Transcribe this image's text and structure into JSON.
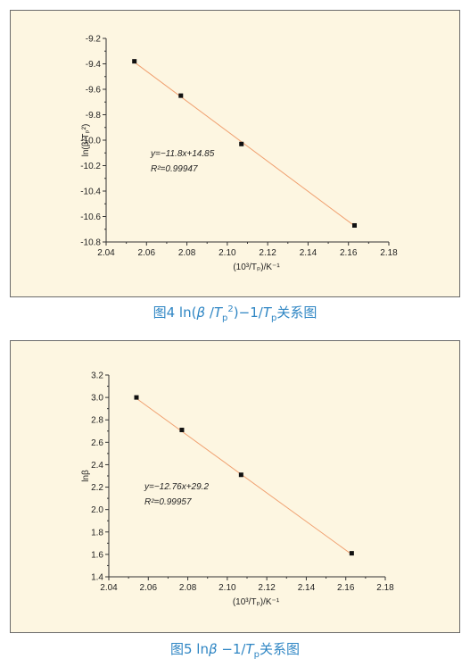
{
  "colors": {
    "panel_bg": "#fdf6e1",
    "fit_line": "#f0a070",
    "marker": "#111111",
    "caption": "#2f86c4"
  },
  "chart_data": [
    {
      "type": "scatter",
      "x": [
        2.054,
        2.077,
        2.107,
        2.163
      ],
      "y": [
        -9.38,
        -9.65,
        -10.03,
        -10.67
      ],
      "fit": {
        "slope": -11.8,
        "intercept": 14.85
      },
      "xlim": [
        2.04,
        2.18
      ],
      "ylim": [
        -10.8,
        -9.2
      ],
      "xticks": [
        "2.04",
        "2.06",
        "2.08",
        "2.10",
        "2.12",
        "2.14",
        "2.16",
        "2.18"
      ],
      "yticks": [
        "-9.2",
        "-9.4",
        "-9.6",
        "-9.8",
        "-10.0",
        "-10.2",
        "-10.4",
        "-10.6",
        "-10.8"
      ],
      "annotation_eq": "y=−11.8x+14.85",
      "annotation_r2": "R²=0.99947",
      "xlabel": "(10³/Tₚ)/K⁻¹",
      "ylabel": "ln(β/Tₚ²)",
      "caption": {
        "prefix": "图4  ln(",
        "beta": "β",
        "slash": " /",
        "T": "T",
        "sub": "p",
        "sup": "2",
        "rest": ")−1/",
        "T2": "T",
        "sub2": "p",
        "tail": "关系图"
      }
    },
    {
      "type": "scatter",
      "x": [
        2.054,
        2.077,
        2.107,
        2.163
      ],
      "y": [
        3.0,
        2.71,
        2.31,
        1.61
      ],
      "fit": {
        "slope": -12.76,
        "intercept": 29.2
      },
      "xlim": [
        2.04,
        2.18
      ],
      "ylim": [
        1.4,
        3.2
      ],
      "xticks": [
        "2.04",
        "2.06",
        "2.08",
        "2.10",
        "2.12",
        "2.14",
        "2.16",
        "2.18"
      ],
      "yticks": [
        "3.2",
        "3.0",
        "2.8",
        "2.6",
        "2.4",
        "2.2",
        "2.0",
        "1.8",
        "1.6",
        "1.4"
      ],
      "annotation_eq": "y=−12.76x+29.2",
      "annotation_r2": "R²=0.99957",
      "xlabel": "(10³/Tₚ)/K⁻¹",
      "ylabel": "lnβ",
      "caption": {
        "prefix": "图5 ln",
        "beta": "β",
        "rest": " −1/",
        "T": "T",
        "sub": "p",
        "tail": "关系图"
      }
    }
  ]
}
